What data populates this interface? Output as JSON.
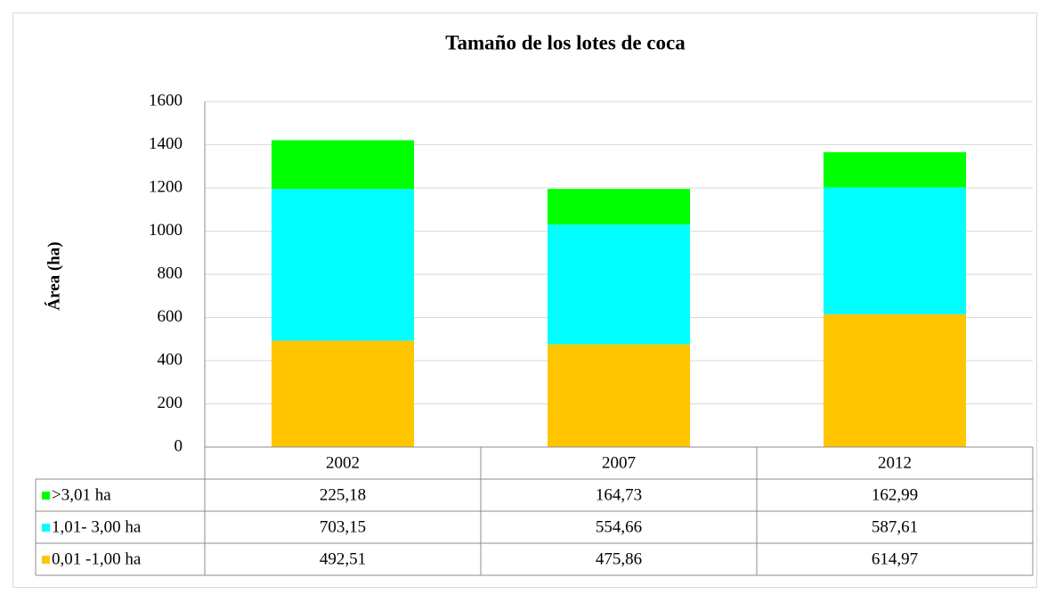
{
  "chart_data": {
    "type": "stacked_bar",
    "title": "Tamaño de los lotes de coca",
    "y_label": "Área (ha)",
    "categories": [
      "2002",
      "2007",
      "2012"
    ],
    "series": [
      {
        "name": ">3,01 ha",
        "color": "#00ff00",
        "values": [
          225.18,
          164.73,
          162.99
        ],
        "value_labels": [
          "225,18",
          "164,73",
          "162,99"
        ]
      },
      {
        "name": "1,01- 3,00 ha",
        "color": "#00ffff",
        "values": [
          703.15,
          554.66,
          587.61
        ],
        "value_labels": [
          "703,15",
          "554,66",
          "587,61"
        ]
      },
      {
        "name": "0,01 -1,00 ha",
        "color": "#ffc600",
        "values": [
          492.51,
          475.86,
          614.97
        ],
        "value_labels": [
          "492,51",
          "475,86",
          "614,97"
        ]
      }
    ],
    "ylim": [
      0,
      1600
    ],
    "yticks": [
      0,
      200,
      400,
      600,
      800,
      1000,
      1200,
      1400,
      1600
    ],
    "grid": true
  }
}
